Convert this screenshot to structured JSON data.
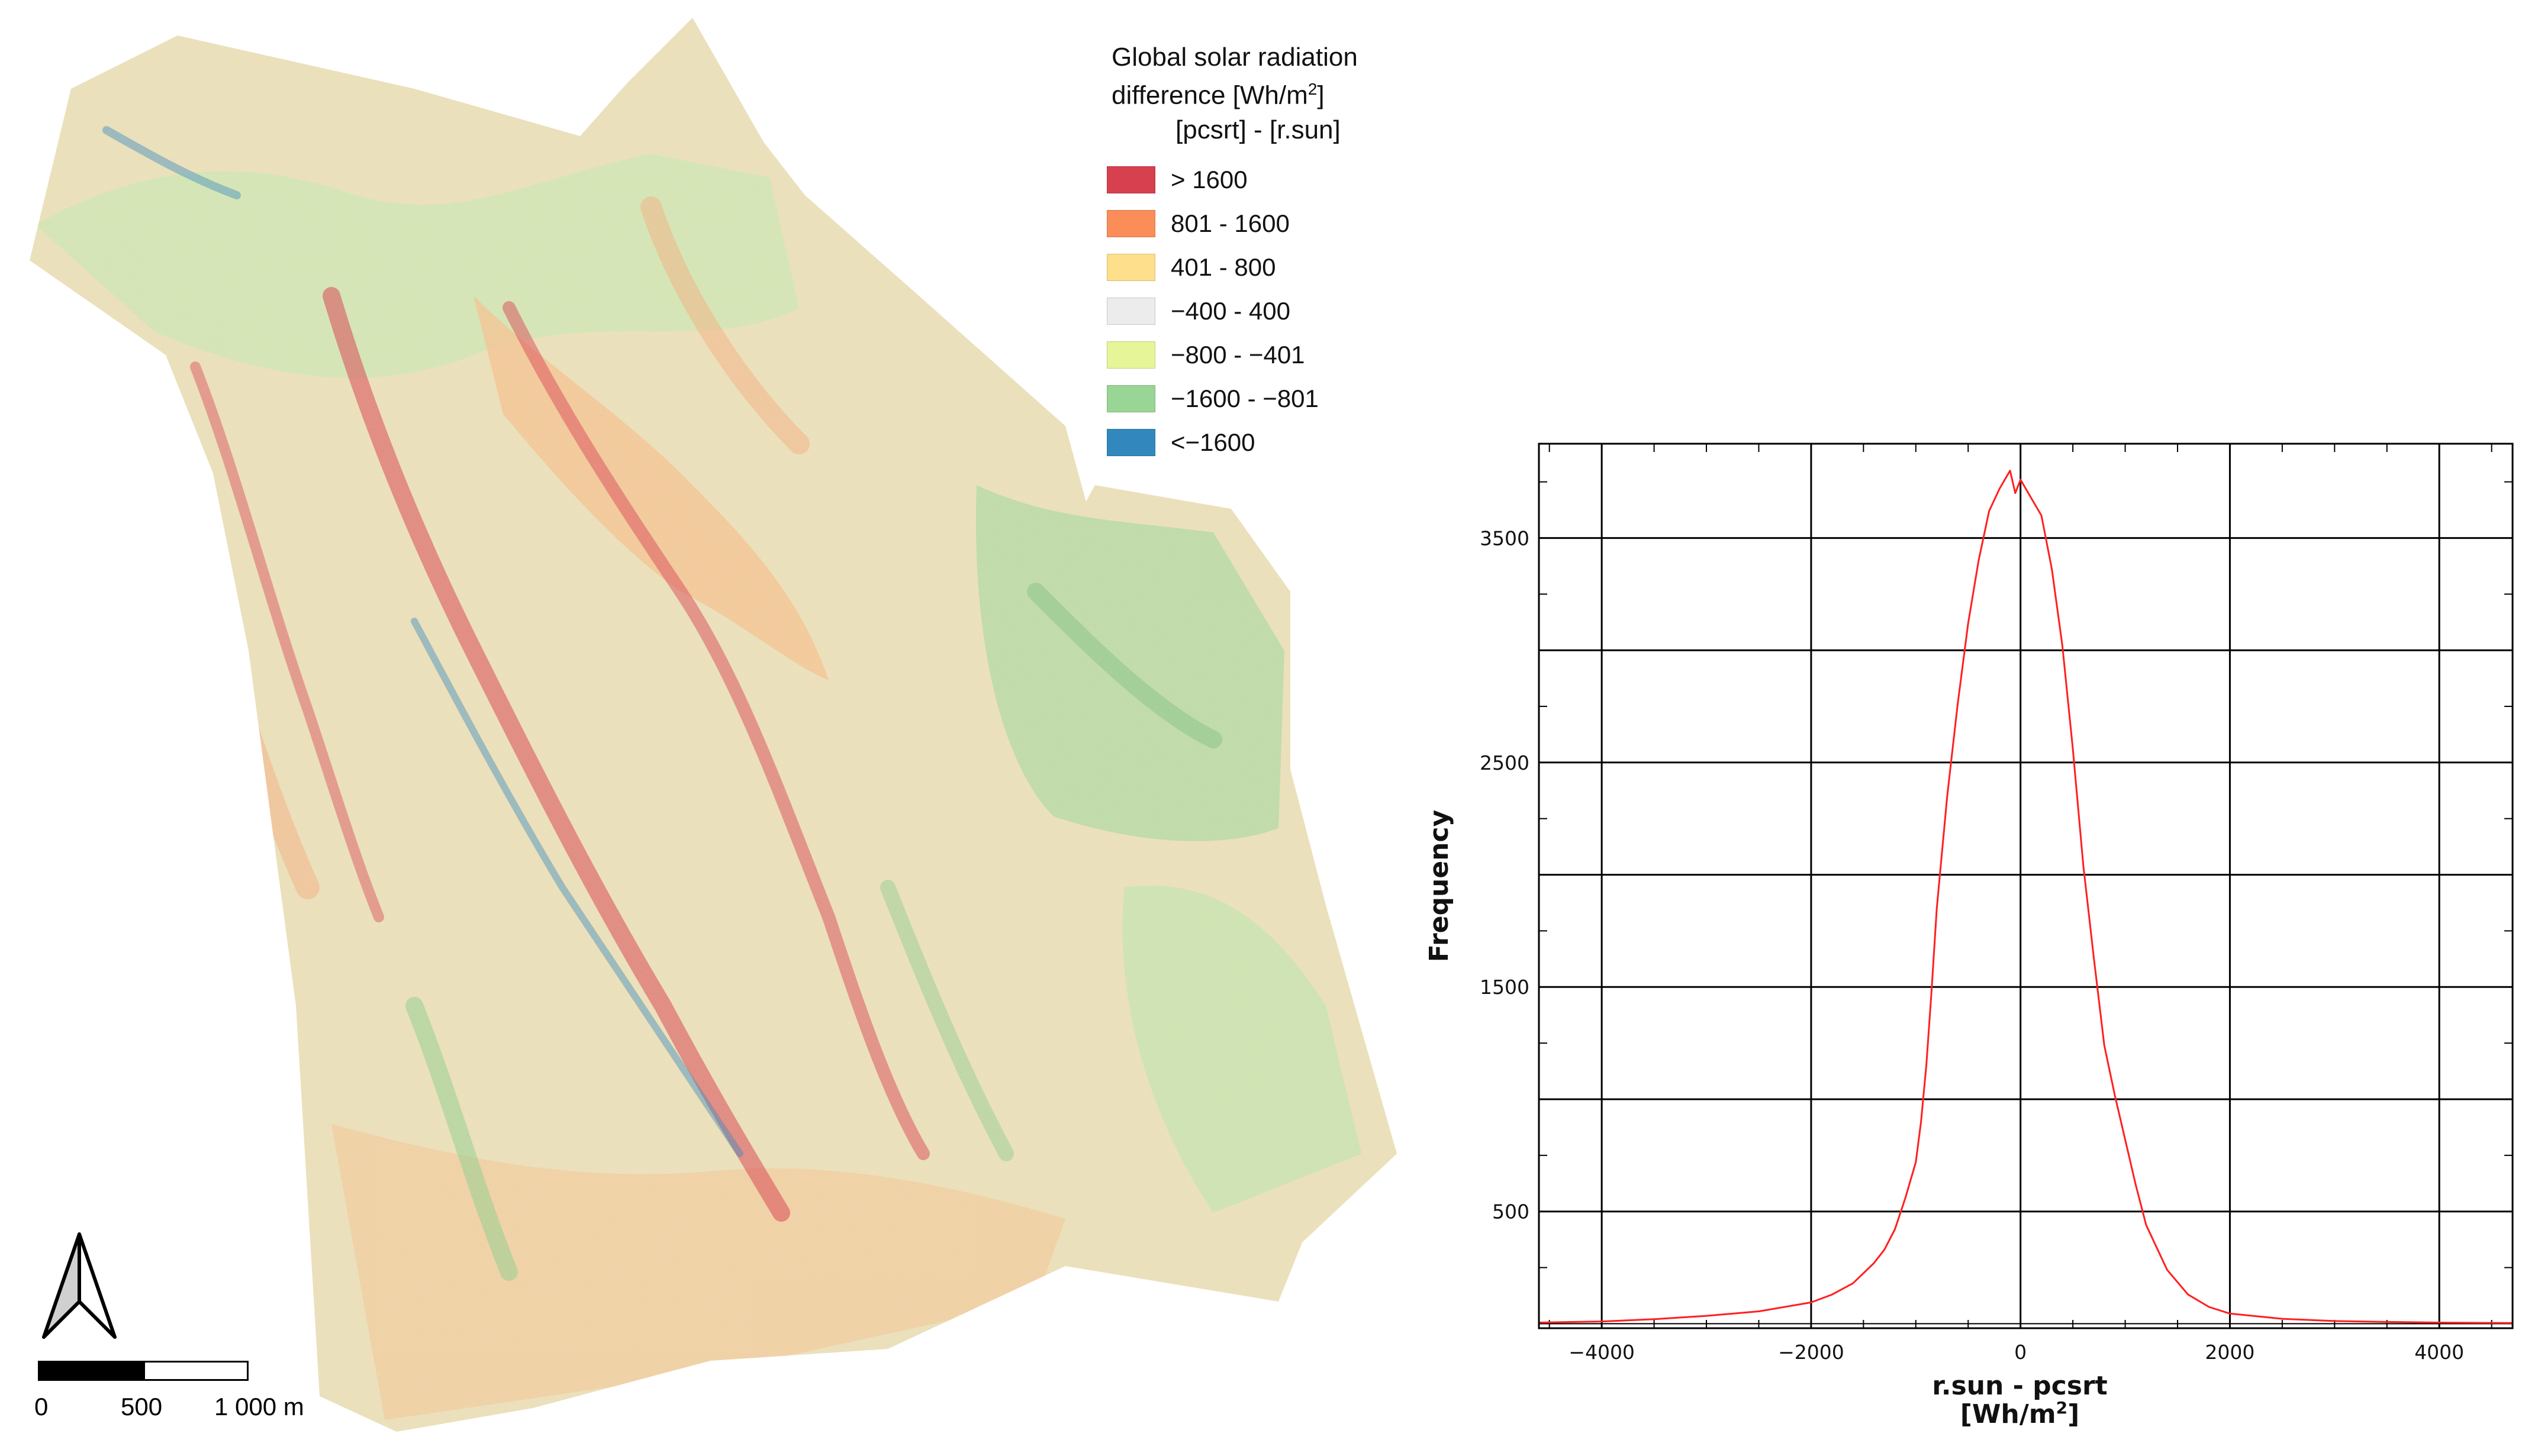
{
  "legend": {
    "title_line1": "Global solar radiation",
    "title_line2_text": "difference [Wh/m",
    "title_line2_sup": "2",
    "title_line2_close": "]",
    "subtitle": "[pcsrt] - [r.sun]",
    "items": [
      {
        "label": "> 1600",
        "color": "#d7404f"
      },
      {
        "label": "801 - 1600",
        "color": "#fb8d59"
      },
      {
        "label": "401 - 800",
        "color": "#fedf8b"
      },
      {
        "label": "−400 - 400",
        "color": "#ececec"
      },
      {
        "label": "−800 - −401",
        "color": "#e6f598"
      },
      {
        "label": "−1600 - −801",
        "color": "#99d594"
      },
      {
        "label": "<−1600",
        "color": "#3288bd"
      }
    ]
  },
  "scalebar": {
    "labels": [
      "0",
      "500",
      "1 000 m"
    ]
  },
  "map": {
    "colors": {
      "base": "#eadfb8",
      "green": "#b9dca0",
      "red": "#d7404f",
      "orange": "#f6a777",
      "blue": "#3288bd"
    }
  },
  "chart_data": {
    "type": "line",
    "xlabel_line1": "r.sun - pcsrt",
    "xlabel_line2_text": "[Wh/m",
    "xlabel_line2_sup": "2",
    "xlabel_line2_close": "]",
    "ylabel": "Frequency",
    "xlim": [
      -4600,
      4700
    ],
    "ylim": [
      -20,
      3920
    ],
    "xticks": [
      -4000,
      -2000,
      0,
      2000,
      4000
    ],
    "xtick_labels": [
      "−4000",
      "−2000",
      "0",
      "2000",
      "4000"
    ],
    "yticks": [
      500,
      1500,
      2500,
      3500
    ],
    "ytick_labels": [
      "500",
      "1500",
      "2500",
      "3500"
    ],
    "ygrid": [
      500,
      1000,
      1500,
      2000,
      2500,
      3000,
      3500
    ],
    "xgrid": [
      -4000,
      -2000,
      0,
      2000,
      4000
    ],
    "grid": true,
    "series": [
      {
        "color": "#ff2020",
        "x": [
          -4600,
          -4000,
          -3500,
          -3000,
          -2500,
          -2000,
          -1800,
          -1600,
          -1400,
          -1300,
          -1200,
          -1100,
          -1000,
          -950,
          -900,
          -850,
          -800,
          -700,
          -600,
          -500,
          -400,
          -300,
          -200,
          -100,
          -50,
          0,
          50,
          100,
          200,
          300,
          400,
          500,
          600,
          700,
          800,
          900,
          1000,
          1100,
          1200,
          1400,
          1600,
          1800,
          2000,
          2500,
          3000,
          3500,
          4000,
          4700
        ],
        "values": [
          5,
          10,
          20,
          35,
          55,
          95,
          130,
          180,
          270,
          330,
          420,
          560,
          720,
          900,
          1150,
          1480,
          1850,
          2350,
          2760,
          3120,
          3400,
          3620,
          3720,
          3800,
          3700,
          3760,
          3720,
          3680,
          3600,
          3360,
          3020,
          2560,
          2040,
          1630,
          1240,
          1020,
          820,
          620,
          440,
          240,
          130,
          75,
          45,
          22,
          12,
          8,
          5,
          3
        ]
      }
    ]
  }
}
